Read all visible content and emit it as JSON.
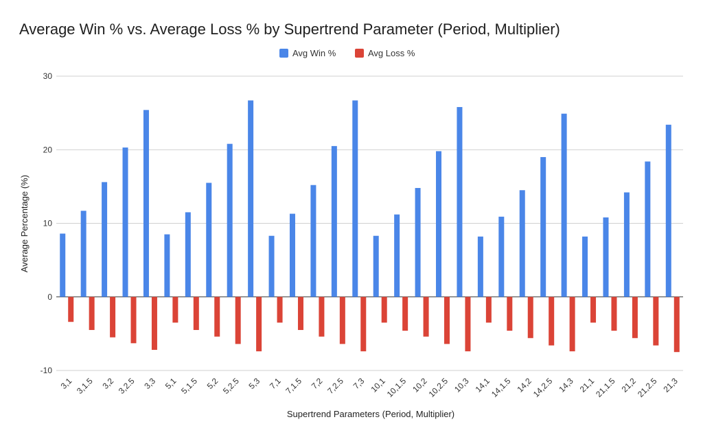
{
  "chart_data": {
    "type": "bar",
    "title": "Average Win % vs. Average Loss % by Supertrend Parameter (Period, Multiplier)",
    "xlabel": "Supertrend Parameters (Period, Multiplier)",
    "ylabel": "Average Percentage (%)",
    "ylim": [
      -10,
      30
    ],
    "yticks": [
      -10,
      0,
      10,
      20,
      30
    ],
    "grid": true,
    "legend_position": "top-center",
    "categories": [
      "3,1",
      "3,1.5",
      "3,2",
      "3,2.5",
      "3,3",
      "5,1",
      "5,1.5",
      "5,2",
      "5,2.5",
      "5,3",
      "7,1",
      "7,1.5",
      "7,2",
      "7,2.5",
      "7,3",
      "10,1",
      "10,1.5",
      "10,2",
      "10,2.5",
      "10,3",
      "14,1",
      "14,1.5",
      "14,2",
      "14,2.5",
      "14,3",
      "21,1",
      "21,1.5",
      "21,2",
      "21,2.5",
      "21,3"
    ],
    "series": [
      {
        "name": "Avg Win %",
        "color": "#4a86e8",
        "values": [
          8.6,
          11.7,
          15.6,
          20.3,
          25.4,
          8.5,
          11.5,
          15.5,
          20.8,
          26.7,
          8.3,
          11.3,
          15.2,
          20.5,
          26.7,
          8.3,
          11.2,
          14.8,
          19.8,
          25.8,
          8.2,
          10.9,
          14.5,
          19.0,
          24.9,
          8.2,
          10.8,
          14.2,
          18.4,
          23.4
        ]
      },
      {
        "name": "Avg Loss %",
        "color": "#db4437",
        "values": [
          -3.4,
          -4.5,
          -5.5,
          -6.3,
          -7.2,
          -3.5,
          -4.5,
          -5.4,
          -6.4,
          -7.4,
          -3.5,
          -4.5,
          -5.4,
          -6.4,
          -7.4,
          -3.5,
          -4.6,
          -5.4,
          -6.4,
          -7.4,
          -3.5,
          -4.6,
          -5.6,
          -6.6,
          -7.4,
          -3.5,
          -4.6,
          -5.6,
          -6.6,
          -7.5
        ]
      }
    ]
  }
}
